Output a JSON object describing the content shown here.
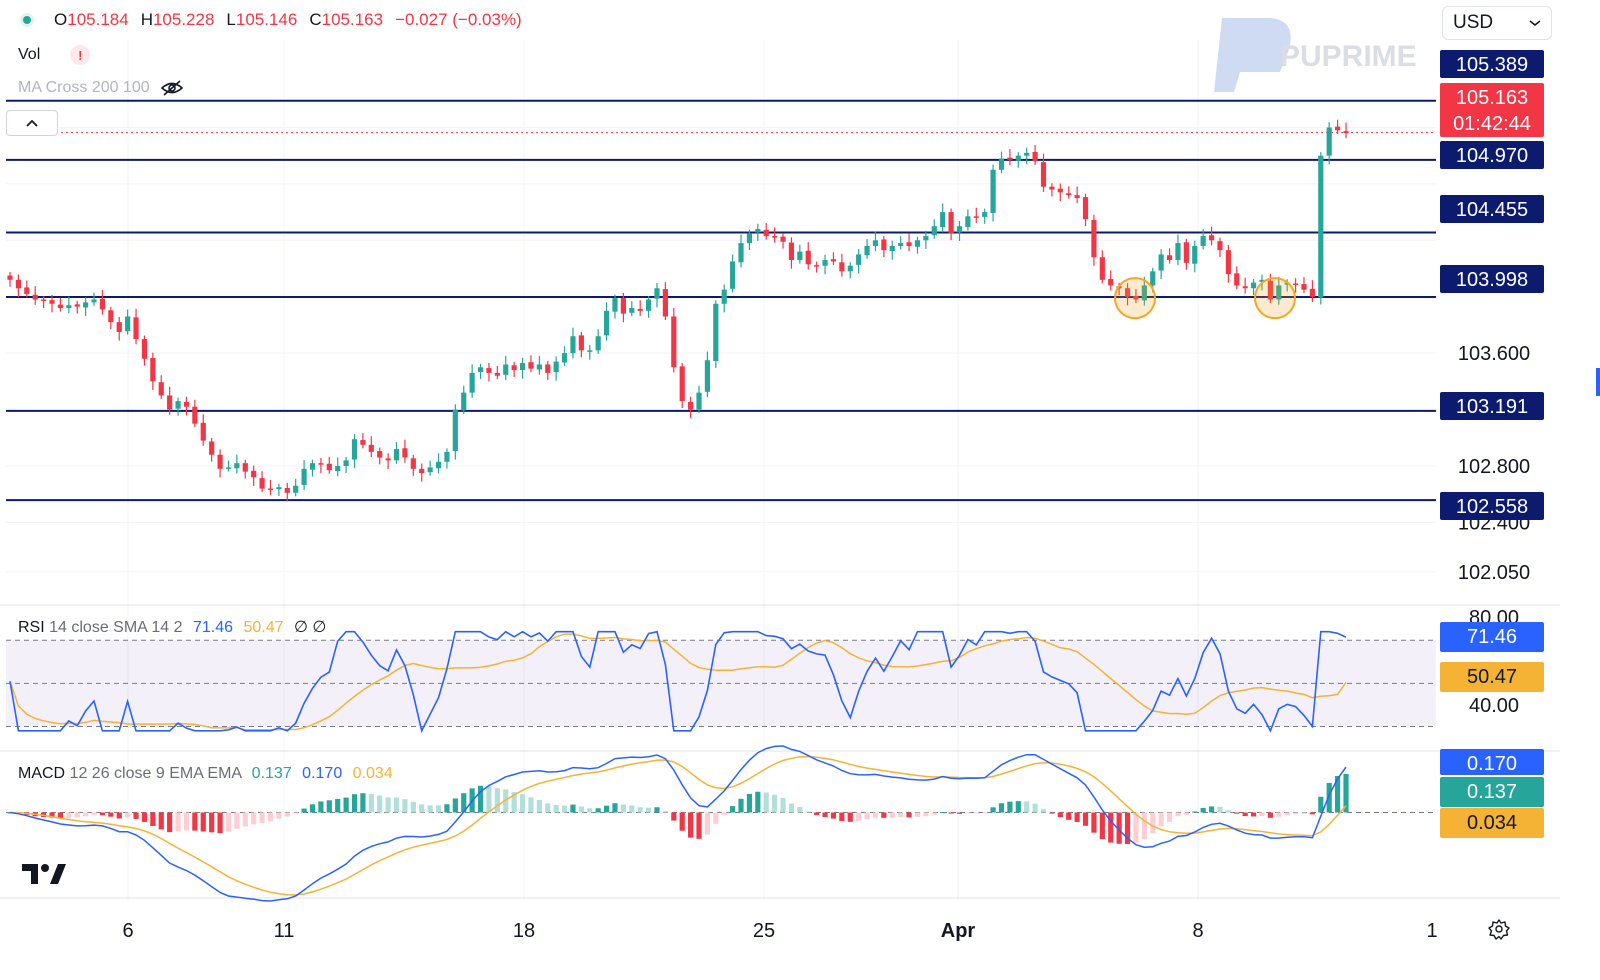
{
  "header": {
    "ohlc": [
      {
        "key": "O",
        "value": "105.184"
      },
      {
        "key": "H",
        "value": "105.228"
      },
      {
        "key": "L",
        "value": "105.146"
      },
      {
        "key": "C",
        "value": "105.163"
      }
    ],
    "change": "−0.027 (−0.03%)",
    "vol_label": "Vol",
    "warning": "!",
    "ma_label": "MA Cross 200 100",
    "currency": "USD",
    "collapse_glyph": "^"
  },
  "watermark": "PUPRIME",
  "colors": {
    "up": "#26a69a",
    "down": "#f23645",
    "level_line": "#0d1b6e",
    "level_tag": "#0d1b6e",
    "price_tag": "#f23645",
    "rsi_line": "#2962ff",
    "rsi_sma": "#f5b335",
    "macd_line": "#2962ff",
    "macd_signal": "#f5b335",
    "hist_up_strong": "#26a69a",
    "hist_up_weak": "#b2dfdb",
    "hist_down_strong": "#f23645",
    "hist_down_weak": "#ffcdd2",
    "highlight": "#f5a623"
  },
  "rsi": {
    "label": "RSI",
    "params": "14 close SMA 14 2",
    "value": "71.46",
    "sma_value": "50.47",
    "icons": "∅ ∅",
    "range": [
      20,
      85
    ],
    "band": [
      30,
      70
    ],
    "mid": 50,
    "tick_labels": [
      "80.00",
      "40.00"
    ],
    "value_tags": [
      "71.46",
      "50.47"
    ]
  },
  "macd": {
    "label": "MACD",
    "params": "12 26 close 9 EMA EMA",
    "hist": "0.137",
    "macd": "0.170",
    "signal": "0.034",
    "range": [
      -0.3,
      0.22
    ],
    "value_tags": [
      "0.170",
      "0.137",
      "0.034"
    ]
  },
  "chart_data": {
    "type": "candlestick",
    "price_axis_ticks": [
      "103.600",
      "102.800",
      "102.400",
      "102.050"
    ],
    "price_range": [
      101.85,
      105.82
    ],
    "x_ticks": [
      "6",
      "11",
      "18",
      "25",
      "Apr",
      "8",
      "1"
    ],
    "current_price": {
      "value": "105.163",
      "countdown": "01:42:44"
    },
    "levels": [
      "105.389",
      "104.970",
      "104.455",
      "103.998",
      "103.191",
      "102.558"
    ],
    "highlighted_lows": [
      {
        "date": "Apr 5",
        "price": 103.99
      },
      {
        "date": "Apr 9",
        "price": 103.99
      }
    ],
    "closes": [
      104.12,
      104.06,
      104.02,
      103.98,
      103.97,
      103.95,
      103.92,
      103.94,
      103.93,
      103.96,
      103.98,
      103.91,
      103.82,
      103.75,
      103.86,
      103.7,
      103.56,
      103.4,
      103.3,
      103.2,
      103.26,
      103.22,
      103.1,
      102.98,
      102.88,
      102.78,
      102.79,
      102.82,
      102.76,
      102.72,
      102.64,
      102.63,
      102.65,
      102.61,
      102.66,
      102.78,
      102.82,
      102.81,
      102.77,
      102.8,
      102.84,
      102.99,
      102.95,
      102.9,
      102.86,
      102.84,
      102.92,
      102.86,
      102.78,
      102.75,
      102.79,
      102.83,
      102.9,
      103.2,
      103.32,
      103.46,
      103.5,
      103.46,
      103.44,
      103.52,
      103.48,
      103.53,
      103.49,
      103.52,
      103.46,
      103.54,
      103.6,
      103.72,
      103.62,
      103.62,
      103.72,
      103.9,
      103.99,
      103.88,
      103.92,
      103.9,
      103.98,
      104.06,
      103.86,
      103.5,
      103.26,
      103.2,
      103.32,
      103.55,
      103.95,
      104.05,
      104.25,
      104.38,
      104.45,
      104.48,
      104.43,
      104.42,
      104.39,
      104.26,
      104.32,
      104.23,
      104.22,
      104.26,
      104.25,
      104.18,
      104.22,
      104.3,
      104.36,
      104.4,
      104.33,
      104.36,
      104.38,
      104.36,
      104.4,
      104.43,
      104.5,
      104.6,
      104.45,
      104.5,
      104.57,
      104.56,
      104.6,
      104.9,
      104.98,
      104.97,
      105.0,
      105.02,
      104.96,
      104.78,
      104.76,
      104.74,
      104.72,
      104.7,
      104.55,
      104.28,
      104.12,
      104.08,
      104.06,
      104.0,
      103.98,
      104.08,
      104.18,
      104.3,
      104.26,
      104.38,
      104.24,
      104.36,
      104.43,
      104.4,
      104.33,
      104.16,
      104.08,
      104.06,
      104.1,
      104.12,
      103.98,
      104.08,
      104.1,
      104.09,
      104.05,
      104.0,
      105.0,
      105.2,
      105.18,
      105.16
    ]
  }
}
